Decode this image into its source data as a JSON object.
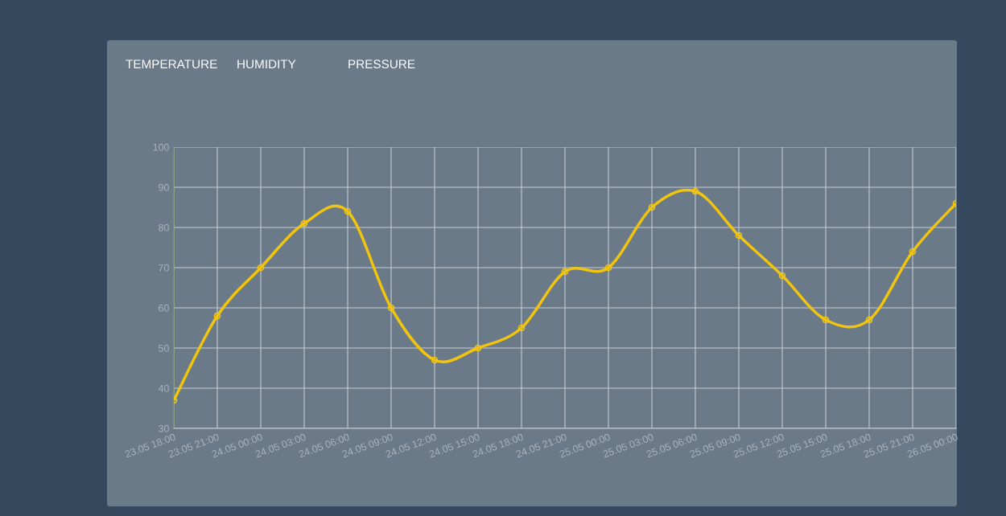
{
  "chart_data": {
    "type": "line",
    "annotations": [
      "TEMPERATURE",
      "HUMIDITY",
      "PRESSURE"
    ],
    "categories": [
      "23.05 18:00",
      "23.05 21:00",
      "24.05 00:00",
      "24.05 03:00",
      "24.05 06:00",
      "24.05 09:00",
      "24.05 12:00",
      "24.05 15:00",
      "24.05 18:00",
      "24.05 21:00",
      "25.05 00:00",
      "25.05 03:00",
      "25.05 06:00",
      "25.05 09:00",
      "25.05 12:00",
      "25.05 15:00",
      "25.05 18:00",
      "25.05 21:00",
      "26.05 00:00"
    ],
    "values": [
      37,
      58,
      70,
      81,
      84,
      60,
      47,
      50,
      55,
      69,
      70,
      85,
      89,
      78,
      68,
      57,
      57,
      74,
      86
    ],
    "color": "#f1c40f",
    "ylim": [
      30,
      100
    ],
    "yticks": [
      30,
      40,
      50,
      60,
      70,
      80,
      90,
      100
    ],
    "grid": true,
    "marker": "circle",
    "line_style": "solid"
  }
}
